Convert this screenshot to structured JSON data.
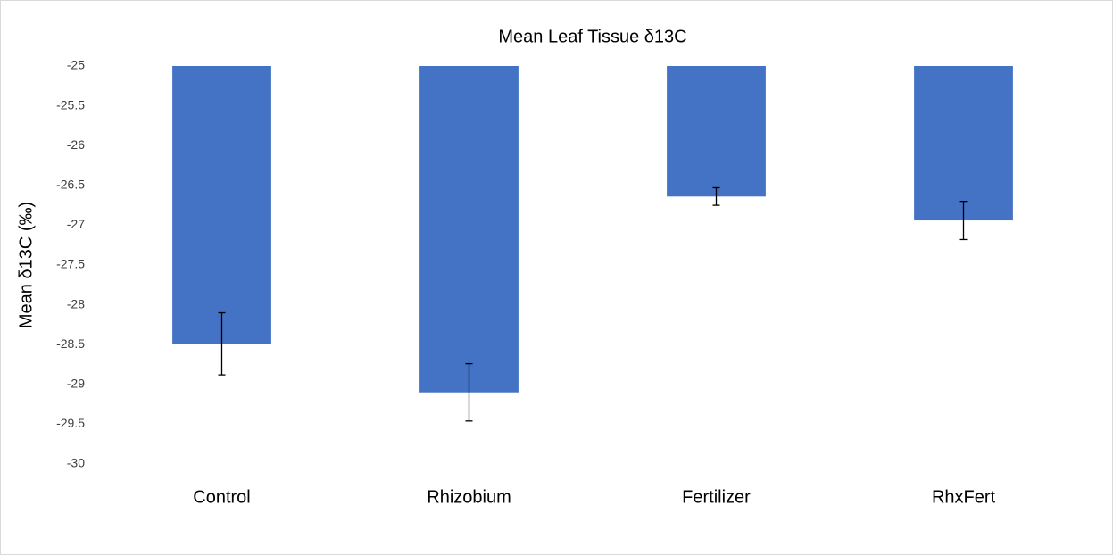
{
  "chart_data": {
    "type": "bar",
    "title": "Mean Leaf Tissue δ13C",
    "y_label": "Mean δ13C (‰)",
    "categories": [
      "Control",
      "Rhizobium",
      "Fertilizer",
      "RhxFert"
    ],
    "values": [
      -28.49,
      -29.1,
      -26.64,
      -26.94
    ],
    "errors": [
      0.39,
      0.36,
      0.11,
      0.24
    ],
    "color": "#4472c4",
    "ylim": [
      -30,
      -25
    ],
    "yticks": [
      -25,
      -25.5,
      -26,
      -26.5,
      -27,
      -27.5,
      -28,
      -28.5,
      -29,
      -29.5,
      -30
    ],
    "grid": false
  }
}
